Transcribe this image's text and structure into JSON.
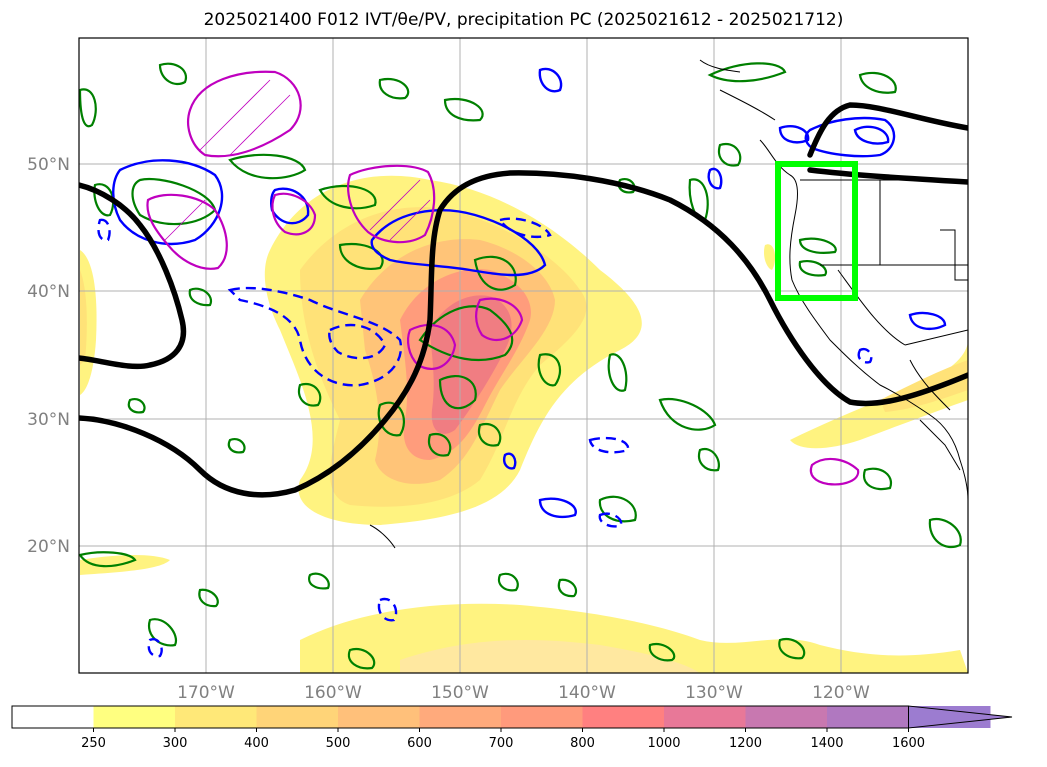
{
  "title": "2025021400 F012 IVT/θe/PV, precipitation PC (2025021612 - 2025021712)",
  "map": {
    "lon_range": [
      -180,
      -110
    ],
    "lat_range": [
      10,
      60
    ],
    "lat_labels": [
      "50°N",
      "40°N",
      "30°N",
      "20°N"
    ],
    "lat_values": [
      50,
      40,
      30,
      20
    ],
    "lon_labels": [
      "170°W",
      "160°W",
      "150°W",
      "140°W",
      "130°W",
      "120°W"
    ],
    "lon_values": [
      -170,
      -160,
      -150,
      -140,
      -130,
      -120
    ],
    "highlight_box": {
      "lon": [
        -125,
        -119
      ],
      "lat": [
        39.5,
        50
      ],
      "color": "#00ff00"
    },
    "colors": {
      "ivt_line": "#000000",
      "theta_e_pos": "#0000ff",
      "theta_e_neg_dashed": "#0000ff",
      "pv": "#008000",
      "precip_contour": "#bf00bf",
      "coast": "#000000"
    }
  },
  "colorbar": {
    "labels": [
      "250",
      "300",
      "400",
      "500",
      "600",
      "700",
      "800",
      "1000",
      "1200",
      "1400",
      "1600"
    ],
    "colors": [
      "#ffffff",
      "#ffff80",
      "#ffe878",
      "#ffd478",
      "#ffc07a",
      "#ffaa7c",
      "#ff9a7c",
      "#ff8080",
      "#e87898",
      "#c878b0",
      "#b078c0",
      "#9c7cd0"
    ],
    "extend": "max"
  }
}
